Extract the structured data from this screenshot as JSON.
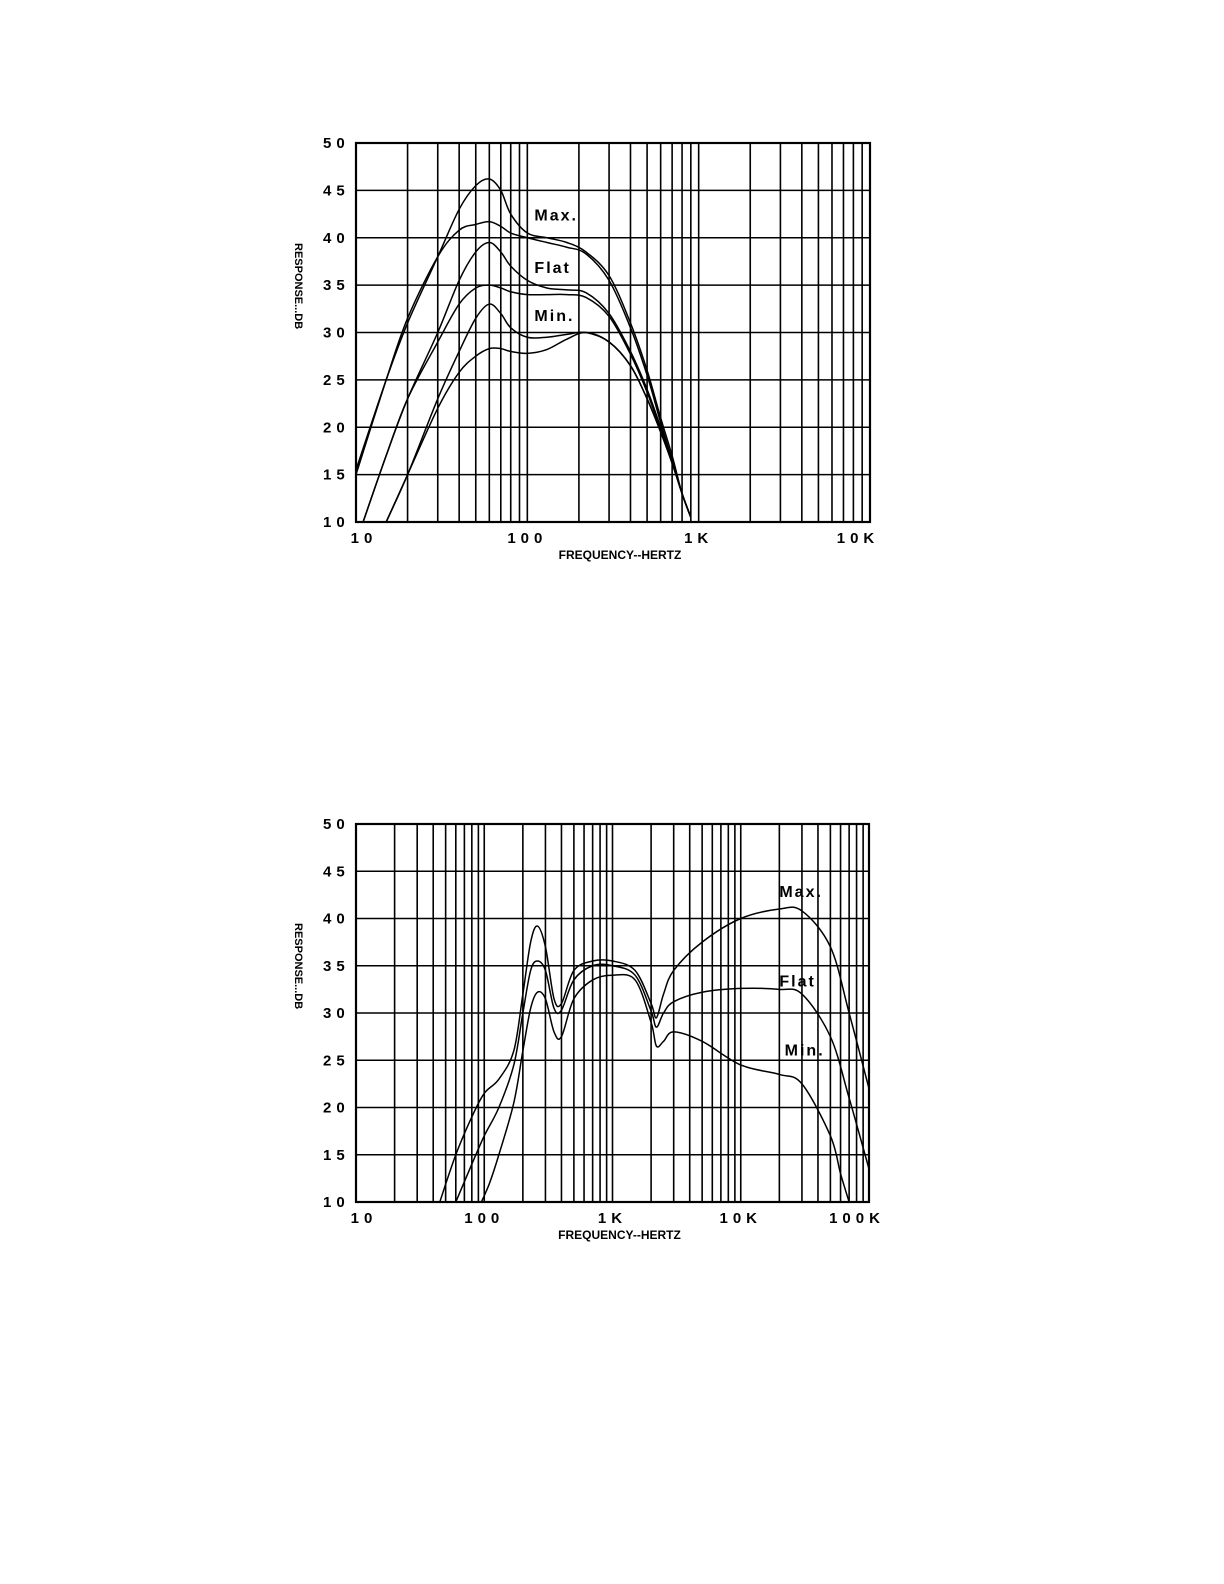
{
  "chart_data": [
    {
      "type": "line",
      "xscale": "log",
      "xlim": [
        10,
        10000
      ],
      "ylim": [
        10,
        50
      ],
      "xlabel": "FREQUENCY--HERTZ",
      "ylabel": "RESPONSE...DB",
      "xticks": [
        10,
        100,
        1000,
        10000
      ],
      "xtick_labels": [
        "10",
        "100",
        "1K",
        "10K"
      ],
      "yticks": [
        10,
        15,
        20,
        25,
        30,
        35,
        40,
        45,
        50
      ],
      "ytick_labels": [
        "10",
        "15",
        "20",
        "25",
        "30",
        "35",
        "40",
        "45",
        "50"
      ],
      "grid": true,
      "annotations": [
        {
          "text": "Max.",
          "x": 110,
          "y": 41.8
        },
        {
          "text": "Flat",
          "x": 110,
          "y": 36.3
        },
        {
          "text": "Min.",
          "x": 110,
          "y": 31.2
        }
      ],
      "series": [
        {
          "x": [
            10,
            15,
            20,
            30,
            40,
            50,
            60,
            70,
            80,
            100,
            130,
            170,
            220,
            300,
            400,
            500,
            600,
            700,
            800,
            900
          ],
          "y": [
            15.5,
            25,
            31,
            38,
            43,
            45.5,
            46.2,
            45,
            42.5,
            40.5,
            40,
            39.5,
            38.5,
            36,
            31,
            26,
            21,
            17,
            13,
            10.5
          ]
        },
        {
          "x": [
            10,
            15,
            20,
            30,
            40,
            50,
            60,
            70,
            80,
            100,
            130,
            170,
            220,
            300,
            400,
            500,
            600,
            700,
            800,
            900
          ],
          "y": [
            15,
            25,
            31.5,
            38,
            40.8,
            41.4,
            41.7,
            41.2,
            40.5,
            40,
            39.5,
            39,
            38.3,
            35.5,
            30.5,
            25.5,
            20.5,
            16.5,
            13,
            10.5
          ]
        },
        {
          "x": [
            11,
            15,
            20,
            30,
            40,
            50,
            60,
            70,
            80,
            100,
            130,
            170,
            220,
            300,
            400,
            500,
            600,
            700,
            800,
            900
          ],
          "y": [
            10,
            17,
            23,
            30,
            35.5,
            38.5,
            39.5,
            38.5,
            37,
            35.5,
            34.7,
            34.5,
            34.2,
            32,
            28,
            24,
            20,
            16.5,
            13,
            10.5
          ]
        },
        {
          "x": [
            11,
            15,
            20,
            30,
            40,
            50,
            60,
            70,
            80,
            100,
            130,
            170,
            220,
            300,
            400,
            500,
            600,
            700,
            800,
            900
          ],
          "y": [
            10,
            17,
            23,
            29,
            33,
            34.7,
            35,
            34.7,
            34.3,
            34,
            34,
            34,
            33.7,
            31.7,
            27.7,
            23.7,
            19.7,
            16.5,
            13,
            10.5
          ]
        },
        {
          "x": [
            15,
            20,
            30,
            40,
            50,
            60,
            70,
            80,
            100,
            130,
            170,
            220,
            300,
            400,
            500,
            600,
            700,
            800,
            900
          ],
          "y": [
            10,
            15,
            23,
            28,
            31.5,
            33,
            32,
            30.5,
            29.5,
            29.5,
            29.8,
            30,
            29,
            26.5,
            23,
            19.5,
            16.2,
            13,
            10.5
          ]
        },
        {
          "x": [
            15,
            20,
            30,
            40,
            50,
            60,
            70,
            80,
            100,
            130,
            170,
            220,
            300,
            400,
            500,
            600,
            700,
            800,
            900
          ],
          "y": [
            10,
            15,
            22,
            25.8,
            27.5,
            28.3,
            28.3,
            28,
            27.8,
            28.2,
            29.3,
            30,
            29,
            26.5,
            23,
            19.5,
            16.2,
            13,
            10.5
          ]
        }
      ]
    },
    {
      "type": "line",
      "xscale": "log",
      "xlim": [
        10,
        100000
      ],
      "ylim": [
        10,
        50
      ],
      "xlabel": "FREQUENCY--HERTZ",
      "ylabel": "RESPONSE...DB",
      "xticks": [
        10,
        100,
        1000,
        10000,
        100000
      ],
      "xtick_labels": [
        "10",
        "100",
        "1K",
        "10K",
        "100K"
      ],
      "yticks": [
        10,
        15,
        20,
        25,
        30,
        35,
        40,
        45,
        50
      ],
      "ytick_labels": [
        "10",
        "15",
        "20",
        "25",
        "30",
        "35",
        "40",
        "45",
        "50"
      ],
      "grid": true,
      "annotations": [
        {
          "text": "Max.",
          "x": 20000,
          "y": 42.3
        },
        {
          "text": "Flat",
          "x": 20000,
          "y": 32.8
        },
        {
          "text": "Min.",
          "x": 22000,
          "y": 25.5
        }
      ],
      "series": [
        {
          "x": [
            45,
            60,
            80,
            100,
            130,
            170,
            200,
            230,
            260,
            300,
            350,
            400,
            500,
            700,
            1000,
            1500,
            2000,
            2200,
            2500,
            3000,
            5000,
            10000,
            20000,
            30000,
            50000,
            70000,
            100000
          ],
          "y": [
            10,
            15,
            19,
            21.5,
            23,
            26,
            32,
            37.5,
            39.2,
            37,
            31.5,
            31,
            34.5,
            35.5,
            35.5,
            34.5,
            31,
            29.5,
            32,
            34.5,
            37.5,
            40,
            41,
            40.8,
            37,
            30,
            22
          ]
        },
        {
          "x": [
            60,
            80,
            100,
            130,
            170,
            200,
            230,
            260,
            300,
            350,
            400,
            500,
            700,
            1000,
            1500,
            2000,
            2200,
            2500,
            3000,
            5000,
            10000,
            20000,
            30000,
            50000,
            70000,
            100000
          ],
          "y": [
            10,
            14,
            17,
            20,
            24.5,
            30,
            34.5,
            35.5,
            34.5,
            30.5,
            30.3,
            33.5,
            35,
            35,
            34,
            30.2,
            28.5,
            30,
            31.2,
            32.2,
            32.6,
            32.5,
            32,
            27.5,
            21,
            13.5
          ]
        },
        {
          "x": [
            95,
            110,
            130,
            170,
            200,
            230,
            260,
            300,
            350,
            400,
            500,
            700,
            1000,
            1500,
            2000,
            2200,
            2500,
            3000,
            5000,
            10000,
            20000,
            30000,
            50000,
            60000,
            70000
          ],
          "y": [
            10,
            12,
            15,
            20.5,
            26,
            30.5,
            32.2,
            31.5,
            28,
            27.5,
            31.5,
            33.5,
            34,
            33.5,
            29,
            26.5,
            27,
            28,
            27,
            24.5,
            23.5,
            22.5,
            17,
            13,
            10
          ]
        }
      ]
    }
  ]
}
